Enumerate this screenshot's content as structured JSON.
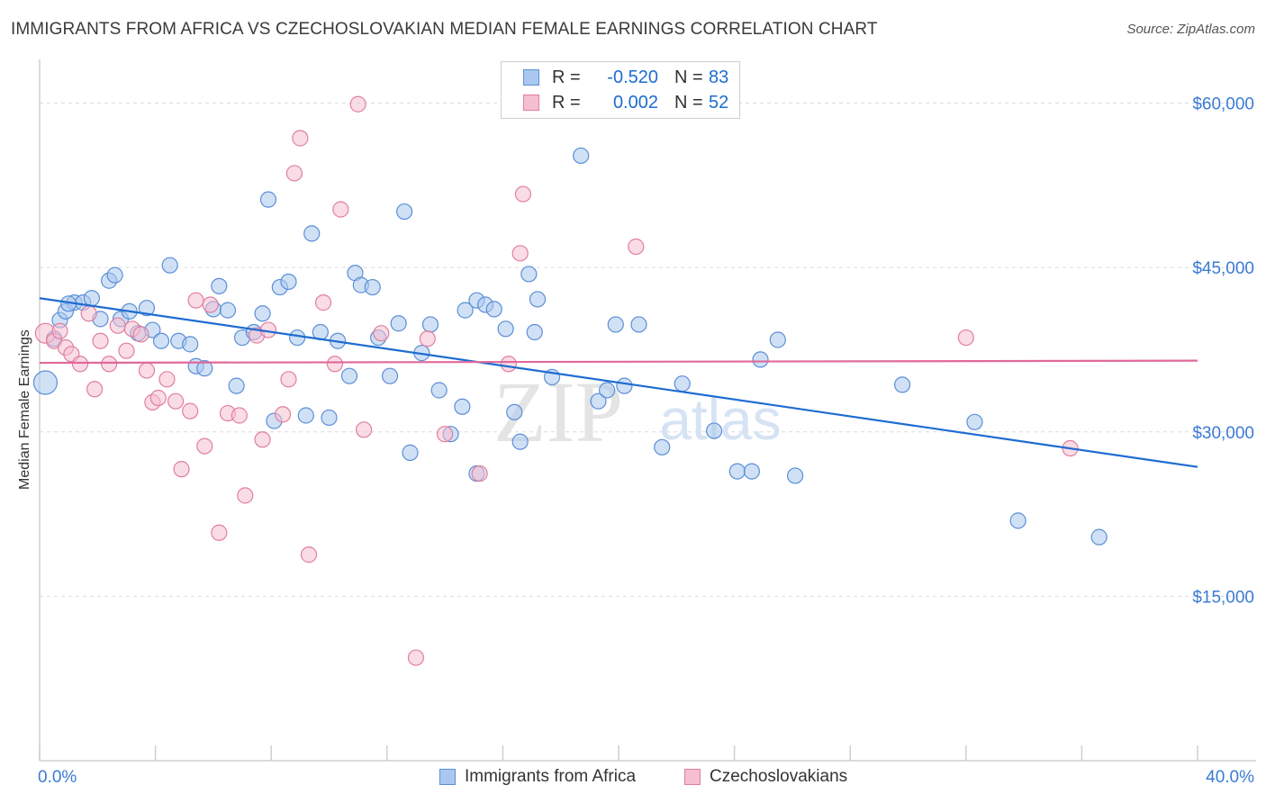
{
  "title": "IMMIGRANTS FROM AFRICA VS CZECHOSLOVAKIAN MEDIAN FEMALE EARNINGS CORRELATION CHART",
  "source": "Source: ZipAtlas.com",
  "watermark": {
    "zip": "ZIP",
    "atlas": "atlas"
  },
  "stats": [
    {
      "r_label": "R =",
      "r_value": "-0.520",
      "n_label": "N =",
      "n_value": "83",
      "color": "#aac8ef",
      "border": "#5b8fd6"
    },
    {
      "r_label": "R =",
      "r_value": "0.002",
      "n_label": "N =",
      "n_value": "52",
      "color": "#f6bfd0",
      "border": "#e07fa0"
    }
  ],
  "legend": [
    {
      "label": "Immigrants from Africa",
      "color": "#aac8ef",
      "border": "#5b8fd6"
    },
    {
      "label": "Czechoslovakians",
      "color": "#f6bfd0",
      "border": "#e07fa0"
    }
  ],
  "chart_data": {
    "type": "scatter",
    "title": "IMMIGRANTS FROM AFRICA VS CZECHOSLOVAKIAN MEDIAN FEMALE EARNINGS CORRELATION CHART",
    "xlabel": "",
    "ylabel": "Median Female Earnings",
    "xlim": [
      0,
      40
    ],
    "ylim": [
      0,
      63000
    ],
    "x_tick_labels": [
      "0.0%",
      "40.0%"
    ],
    "y_ticks": [
      15000,
      30000,
      45000,
      60000
    ],
    "y_tick_labels": [
      "$15,000",
      "$30,000",
      "$45,000",
      "$60,000"
    ],
    "grid": "horizontal dashed",
    "legend_position": "bottom-center",
    "series": [
      {
        "name": "Immigrants from Africa",
        "color": "#5b8fd6",
        "fill": "#aac8ef",
        "trend": {
          "x": [
            0,
            40
          ],
          "y": [
            42200,
            26800
          ],
          "color": "#1d6cd1"
        },
        "points": [
          [
            0.2,
            34500
          ],
          [
            0.5,
            38500
          ],
          [
            0.7,
            40200
          ],
          [
            0.9,
            41000
          ],
          [
            1.2,
            41800
          ],
          [
            1.5,
            41800
          ],
          [
            1.8,
            42200
          ],
          [
            2.1,
            40300
          ],
          [
            2.4,
            43800
          ],
          [
            2.6,
            44300
          ],
          [
            2.8,
            40300
          ],
          [
            3.1,
            41000
          ],
          [
            3.4,
            39000
          ],
          [
            3.7,
            41300
          ],
          [
            3.9,
            39300
          ],
          [
            4.2,
            38300
          ],
          [
            4.5,
            45200
          ],
          [
            4.8,
            38300
          ],
          [
            5.2,
            38000
          ],
          [
            5.4,
            36000
          ],
          [
            5.7,
            35800
          ],
          [
            6.0,
            41200
          ],
          [
            6.2,
            43300
          ],
          [
            6.5,
            41100
          ],
          [
            6.8,
            34200
          ],
          [
            7.0,
            38600
          ],
          [
            7.4,
            39100
          ],
          [
            7.7,
            40800
          ],
          [
            7.9,
            51200
          ],
          [
            8.1,
            31000
          ],
          [
            8.3,
            43200
          ],
          [
            8.6,
            43700
          ],
          [
            8.9,
            38600
          ],
          [
            9.2,
            31500
          ],
          [
            9.4,
            48100
          ],
          [
            9.7,
            39100
          ],
          [
            10.0,
            31300
          ],
          [
            10.3,
            38300
          ],
          [
            10.7,
            35100
          ],
          [
            10.9,
            44500
          ],
          [
            11.1,
            43400
          ],
          [
            11.5,
            43200
          ],
          [
            11.7,
            38600
          ],
          [
            12.1,
            35100
          ],
          [
            12.4,
            39900
          ],
          [
            12.6,
            50100
          ],
          [
            12.8,
            28100
          ],
          [
            13.2,
            37200
          ],
          [
            13.5,
            39800
          ],
          [
            13.8,
            33800
          ],
          [
            14.2,
            29800
          ],
          [
            14.6,
            32300
          ],
          [
            14.7,
            41100
          ],
          [
            15.1,
            42000
          ],
          [
            15.4,
            41600
          ],
          [
            15.7,
            41200
          ],
          [
            15.1,
            26200
          ],
          [
            16.1,
            39400
          ],
          [
            16.4,
            31800
          ],
          [
            16.6,
            29100
          ],
          [
            16.9,
            44400
          ],
          [
            17.1,
            39100
          ],
          [
            17.2,
            42100
          ],
          [
            17.7,
            35000
          ],
          [
            18.7,
            55200
          ],
          [
            19.3,
            32800
          ],
          [
            19.6,
            33800
          ],
          [
            19.9,
            39800
          ],
          [
            20.2,
            34200
          ],
          [
            20.7,
            39800
          ],
          [
            21.5,
            28600
          ],
          [
            22.2,
            34400
          ],
          [
            23.3,
            30100
          ],
          [
            24.1,
            26400
          ],
          [
            24.6,
            26400
          ],
          [
            24.9,
            36600
          ],
          [
            25.5,
            38400
          ],
          [
            26.1,
            26000
          ],
          [
            29.8,
            34300
          ],
          [
            32.3,
            30900
          ],
          [
            33.8,
            21900
          ],
          [
            36.6,
            20400
          ],
          [
            1.0,
            41700
          ]
        ]
      },
      {
        "name": "Czechoslovakians",
        "color": "#e07fa0",
        "fill": "#f6bfd0",
        "trend": {
          "x": [
            0,
            40
          ],
          "y": [
            36300,
            36500
          ],
          "color": "#e0699a"
        },
        "points": [
          [
            0.2,
            39000
          ],
          [
            0.5,
            38300
          ],
          [
            0.7,
            39200
          ],
          [
            0.9,
            37700
          ],
          [
            1.1,
            37100
          ],
          [
            1.4,
            36200
          ],
          [
            1.7,
            40800
          ],
          [
            1.9,
            33900
          ],
          [
            2.1,
            38300
          ],
          [
            2.4,
            36200
          ],
          [
            2.7,
            39700
          ],
          [
            3.0,
            37400
          ],
          [
            3.2,
            39400
          ],
          [
            3.5,
            38900
          ],
          [
            3.7,
            35600
          ],
          [
            3.9,
            32700
          ],
          [
            4.1,
            33100
          ],
          [
            4.4,
            34800
          ],
          [
            4.7,
            32800
          ],
          [
            4.9,
            26600
          ],
          [
            5.2,
            31900
          ],
          [
            5.4,
            42000
          ],
          [
            5.7,
            28700
          ],
          [
            5.9,
            41600
          ],
          [
            6.2,
            20800
          ],
          [
            6.5,
            31700
          ],
          [
            6.9,
            31500
          ],
          [
            7.1,
            24200
          ],
          [
            7.5,
            38800
          ],
          [
            7.7,
            29300
          ],
          [
            7.9,
            39300
          ],
          [
            8.4,
            31600
          ],
          [
            8.6,
            34800
          ],
          [
            8.8,
            53600
          ],
          [
            9.0,
            56800
          ],
          [
            9.3,
            18800
          ],
          [
            9.8,
            41800
          ],
          [
            10.2,
            36200
          ],
          [
            10.4,
            50300
          ],
          [
            11.0,
            59900
          ],
          [
            11.2,
            30200
          ],
          [
            11.8,
            39000
          ],
          [
            13.0,
            9400
          ],
          [
            13.4,
            38500
          ],
          [
            14.0,
            29800
          ],
          [
            15.2,
            26200
          ],
          [
            16.2,
            36200
          ],
          [
            16.6,
            46300
          ],
          [
            16.7,
            51700
          ],
          [
            20.6,
            46900
          ],
          [
            32.0,
            38600
          ],
          [
            35.6,
            28500
          ]
        ]
      }
    ]
  }
}
